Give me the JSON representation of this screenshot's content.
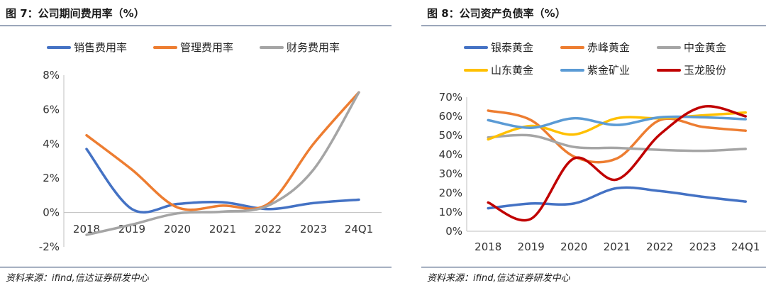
{
  "chart_data": [
    {
      "type": "line",
      "title": "图 7：公司期间费用率（%）",
      "source": "资料来源：ifind,信达证券研发中心",
      "categories": [
        "2018",
        "2019",
        "2020",
        "2021",
        "2022",
        "2023",
        "24Q1"
      ],
      "y_ticks": [
        "8%",
        "6%",
        "4%",
        "2%",
        "0%",
        "-2%"
      ],
      "ylim": [
        -2,
        8
      ],
      "legend_position": "top",
      "grid": false,
      "series": [
        {
          "name": "销售费用率",
          "color": "#4472C4",
          "values": [
            3.7,
            0.2,
            0.5,
            0.6,
            0.2,
            0.55,
            0.75
          ]
        },
        {
          "name": "管理费用率",
          "color": "#ED7D31",
          "values": [
            4.5,
            2.5,
            0.3,
            0.4,
            0.5,
            4.0,
            7.0
          ]
        },
        {
          "name": "财务费用率",
          "color": "#A5A5A5",
          "values": [
            -1.3,
            -0.7,
            -0.05,
            0.05,
            0.4,
            2.5,
            7.0
          ]
        }
      ]
    },
    {
      "type": "line",
      "title": "图 8：公司资产负债率（%）",
      "source": "资料来源：ifind,信达证券研发中心",
      "categories": [
        "2018",
        "2019",
        "2020",
        "2021",
        "2022",
        "2023",
        "24Q1"
      ],
      "y_ticks": [
        "70%",
        "60%",
        "50%",
        "40%",
        "30%",
        "20%",
        "10%",
        "0%"
      ],
      "ylim": [
        0,
        70
      ],
      "legend_position": "top",
      "grid": false,
      "series": [
        {
          "name": "银泰黄金",
          "color": "#4472C4",
          "values": [
            12,
            14.5,
            14.5,
            22.5,
            21,
            18,
            15.5
          ]
        },
        {
          "name": "赤峰黄金",
          "color": "#ED7D31",
          "values": [
            63,
            58,
            39,
            38,
            58,
            54.5,
            52.5
          ]
        },
        {
          "name": "中金黄金",
          "color": "#A5A5A5",
          "values": [
            49,
            50,
            44,
            43.5,
            42.5,
            42,
            43
          ]
        },
        {
          "name": "山东黄金",
          "color": "#FFC000",
          "values": [
            48,
            55,
            50.5,
            59,
            59,
            60.5,
            62
          ]
        },
        {
          "name": "紫金矿业",
          "color": "#5B9BD5",
          "values": [
            58,
            54,
            59,
            55.5,
            59.5,
            59.5,
            58.5
          ]
        },
        {
          "name": "玉龙股份",
          "color": "#C00000",
          "values": [
            15,
            6.5,
            38,
            27,
            50.5,
            65,
            60
          ]
        }
      ]
    }
  ]
}
